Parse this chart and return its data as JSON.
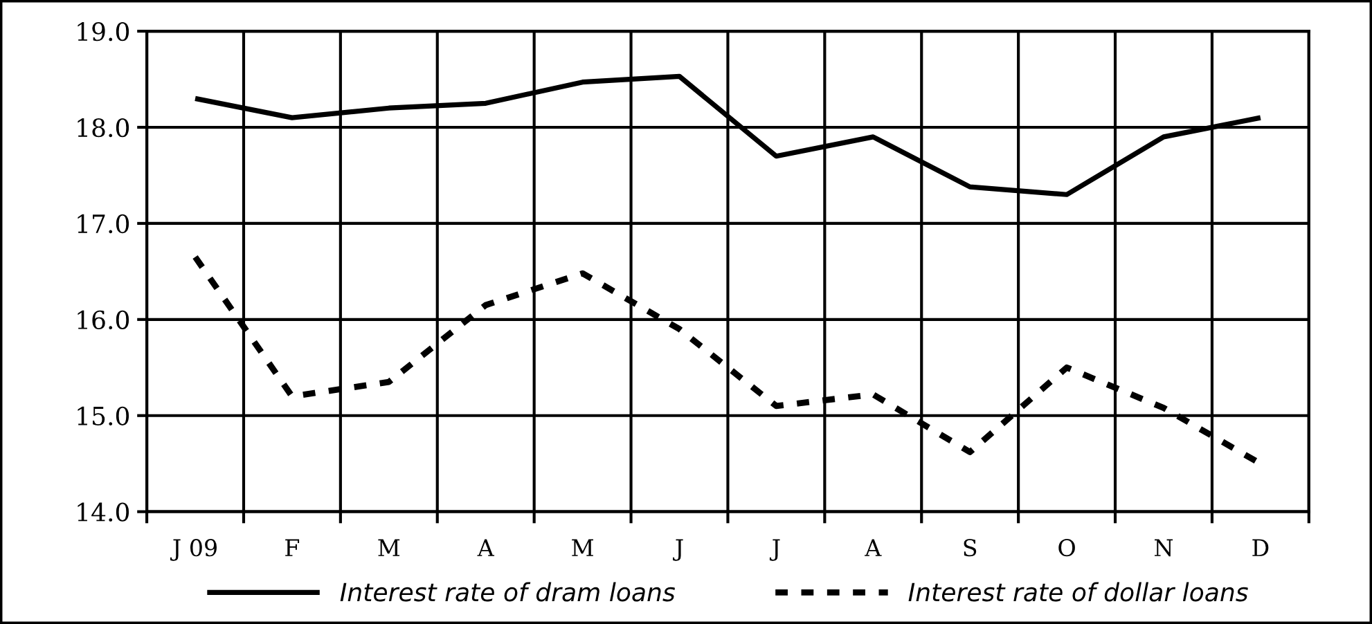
{
  "chart_data": {
    "type": "line",
    "categories": [
      "J 09",
      "F",
      "M",
      "A",
      "M",
      "J",
      "J",
      "A",
      "S",
      "O",
      "N",
      "D"
    ],
    "series": [
      {
        "name": "Interest rate of dram loans",
        "color": "#000000",
        "line_style": "solid",
        "values": [
          18.3,
          18.1,
          18.2,
          18.25,
          18.47,
          18.53,
          17.7,
          17.9,
          17.38,
          17.3,
          17.9,
          18.1
        ]
      },
      {
        "name": "Interest rate of dollar loans",
        "color": "#000000",
        "line_style": "dotted",
        "values": [
          16.65,
          15.2,
          15.35,
          16.15,
          16.48,
          15.9,
          15.1,
          15.22,
          14.62,
          15.5,
          15.08,
          14.5
        ]
      }
    ],
    "ylim": [
      14.0,
      19.0
    ],
    "yticks": [
      {
        "value": 14,
        "label": "14.0"
      },
      {
        "value": 15,
        "label": "15.0"
      },
      {
        "value": 16,
        "label": "16.0"
      },
      {
        "value": 17,
        "label": "17.0"
      },
      {
        "value": 18,
        "label": "18.0"
      },
      {
        "value": 19,
        "label": "19.0"
      }
    ],
    "grid": true,
    "legend": "bottom"
  }
}
